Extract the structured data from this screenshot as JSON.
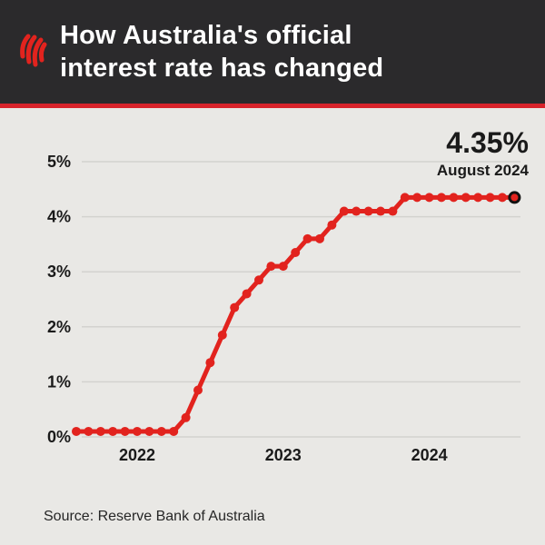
{
  "header": {
    "title_line1": "How Australia's official",
    "title_line2": "interest rate has changed",
    "logo": "sbs-mercury-logo"
  },
  "annotation": {
    "current_rate": "4.35%",
    "current_date": "August 2024"
  },
  "source": {
    "text": "Source: Reserve Bank of Australia"
  },
  "colors": {
    "header_bg": "#2b2a2c",
    "accent_red": "#d8232b",
    "line_red": "#e2231e",
    "background": "#e9e8e5",
    "grid": "#d3d2cf",
    "text_dark": "#1a1a1a",
    "end_dot_ring": "#111111"
  },
  "chart_data": {
    "type": "line",
    "title": "How Australia's official interest rate has changed",
    "ylabel": "",
    "xlabel": "",
    "ylim": [
      0,
      5
    ],
    "grid": true,
    "yticks": [
      {
        "value": 0,
        "label": "0%"
      },
      {
        "value": 1,
        "label": "1%"
      },
      {
        "value": 2,
        "label": "2%"
      },
      {
        "value": 3,
        "label": "3%"
      },
      {
        "value": 4,
        "label": "4%"
      },
      {
        "value": 5,
        "label": "5%"
      }
    ],
    "xticks": [
      {
        "label": "2022",
        "month_index": 5
      },
      {
        "label": "2023",
        "month_index": 17
      },
      {
        "label": "2024",
        "month_index": 29
      }
    ],
    "x": [
      "Aug 2021",
      "Sep 2021",
      "Oct 2021",
      "Nov 2021",
      "Dec 2021",
      "Jan 2022",
      "Feb 2022",
      "Mar 2022",
      "Apr 2022",
      "May 2022",
      "Jun 2022",
      "Jul 2022",
      "Aug 2022",
      "Sep 2022",
      "Oct 2022",
      "Nov 2022",
      "Dec 2022",
      "Jan 2023",
      "Feb 2023",
      "Mar 2023",
      "Apr 2023",
      "May 2023",
      "Jun 2023",
      "Jul 2023",
      "Aug 2023",
      "Sep 2023",
      "Oct 2023",
      "Nov 2023",
      "Dec 2023",
      "Jan 2024",
      "Feb 2024",
      "Mar 2024",
      "Apr 2024",
      "May 2024",
      "Jun 2024",
      "Jul 2024",
      "Aug 2024"
    ],
    "values": [
      0.1,
      0.1,
      0.1,
      0.1,
      0.1,
      0.1,
      0.1,
      0.1,
      0.1,
      0.35,
      0.85,
      1.35,
      1.85,
      2.35,
      2.6,
      2.85,
      3.1,
      3.1,
      3.35,
      3.6,
      3.6,
      3.85,
      4.1,
      4.1,
      4.1,
      4.1,
      4.1,
      4.35,
      4.35,
      4.35,
      4.35,
      4.35,
      4.35,
      4.35,
      4.35,
      4.35,
      4.35
    ],
    "end_label": {
      "value": "4.35%",
      "date": "August 2024"
    }
  }
}
